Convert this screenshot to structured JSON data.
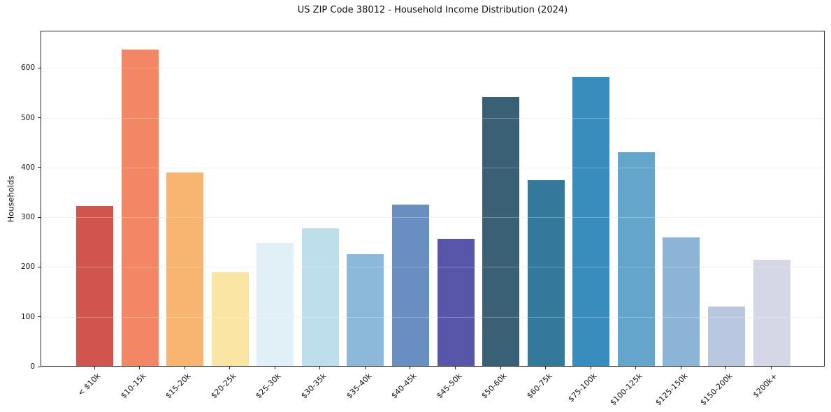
{
  "title": "US ZIP Code 38012 - Household Income Distribution (2024)",
  "chart_data": {
    "type": "bar",
    "title": "US ZIP Code 38012 - Household Income Distribution (2024)",
    "xlabel": "",
    "ylabel": "Households",
    "ylim": [
      0,
      675
    ],
    "yticks": [
      0,
      100,
      200,
      300,
      400,
      500,
      600
    ],
    "grid": "horizontal",
    "legend": "none",
    "categories": [
      "< $10k",
      "$10-15k",
      "$15-20k",
      "$20-25k",
      "$25-30k",
      "$30-35k",
      "$35-40k",
      "$40-45k",
      "$45-50k",
      "$50-60k",
      "$60-75k",
      "$75-100k",
      "$100-125k",
      "$125-150k",
      "$150-200k",
      "$200k+"
    ],
    "values": [
      321,
      636,
      389,
      188,
      247,
      277,
      224,
      324,
      256,
      540,
      373,
      581,
      430,
      258,
      120,
      213
    ],
    "bar_colors": [
      "#d1544e",
      "#f38664",
      "#f8b571",
      "#fbe5a4",
      "#e0f0f6",
      "#bedeec",
      "#8cb9da",
      "#688ec2",
      "#5856a8",
      "#3a6076",
      "#34789c",
      "#388cbe",
      "#64a5cc",
      "#8cb4d7",
      "#b9c8e0",
      "#d5d7e6"
    ]
  },
  "colors": {
    "background": "#ffffff",
    "spine": "#262626",
    "gridline": "#ececec",
    "text": "#111111"
  }
}
